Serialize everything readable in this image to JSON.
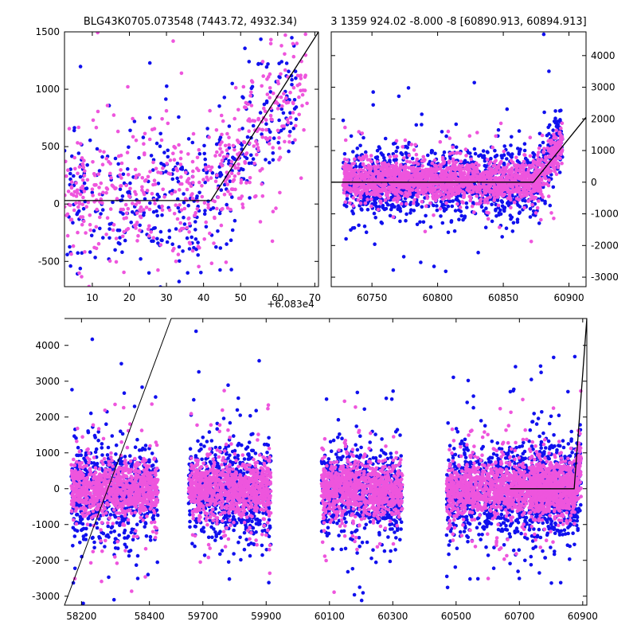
{
  "colors": {
    "series_a": "#1010ee",
    "series_b": "#ee55dd",
    "model": "#000000",
    "frame": "#000000"
  },
  "chart_data": [
    {
      "type": "scatter",
      "panel": "top-left",
      "title": "BLG43K0705.073548 (7443.72, 4932.34)",
      "x_offset_label": "+6.083e4",
      "xlim": [
        2.5,
        71
      ],
      "ylim": [
        -720,
        1500
      ],
      "xticks": [
        10,
        20,
        30,
        40,
        50,
        60,
        70
      ],
      "yticks": [
        -500,
        0,
        500,
        1000,
        1500
      ],
      "ytick_side": "left",
      "series": [
        {
          "color_key": "series_a",
          "x_range": [
            2.5,
            65
          ],
          "y_center": 60,
          "y_spread": 320,
          "trend": {
            "start": 40,
            "slope": 40
          },
          "count": 420,
          "seed": 11
        },
        {
          "color_key": "series_b",
          "x_range": [
            2.5,
            68
          ],
          "y_center": 120,
          "y_spread": 280,
          "trend": {
            "start": 40,
            "slope": 35
          },
          "count": 560,
          "seed": 23
        }
      ],
      "model_line": [
        [
          2.5,
          30
        ],
        [
          42,
          30
        ],
        [
          71,
          1500
        ]
      ]
    },
    {
      "type": "scatter",
      "panel": "top-right",
      "title": "3 1359 924.02 -8.000 -8 [60890.913, 60894.913]",
      "xlim": [
        60719,
        60913
      ],
      "ylim": [
        -3300,
        4750
      ],
      "xticks": [
        60750,
        60800,
        60850,
        60900
      ],
      "yticks": [
        -3000,
        -2000,
        -1000,
        0,
        1000,
        2000,
        3000,
        4000
      ],
      "ytick_side": "right",
      "series": [
        {
          "color_key": "series_a",
          "x_range": [
            60728,
            60895
          ],
          "y_center": 0,
          "y_spread": 520,
          "trend": {
            "start": 60875,
            "slope": 70
          },
          "count": 1400,
          "seed": 31
        },
        {
          "color_key": "series_b",
          "x_range": [
            60728,
            60895
          ],
          "y_center": 60,
          "y_spread": 300,
          "trend": {
            "start": 60875,
            "slope": 60
          },
          "count": 1800,
          "seed": 47
        }
      ],
      "model_line": [
        [
          60719,
          0
        ],
        [
          60873,
          0
        ],
        [
          60913,
          2050
        ]
      ]
    },
    {
      "type": "scatter",
      "panel": "bottom",
      "xlim": [
        0,
        1
      ],
      "ylim": [
        -3250,
        4750
      ],
      "xticks": [
        58200,
        58400,
        59700,
        59900,
        60100,
        60300,
        60500,
        60700,
        60900
      ],
      "yticks": [
        -3000,
        -2000,
        -1000,
        0,
        1000,
        2000,
        3000,
        4000
      ],
      "ytick_side": "left",
      "seasons": [
        {
          "x_range": [
            58170,
            58425
          ]
        },
        {
          "x_range": [
            59655,
            59915
          ]
        },
        {
          "x_range": [
            60075,
            60330
          ]
        },
        {
          "x_range": [
            60470,
            60725
          ]
        },
        {
          "x_range": [
            60730,
            60895
          ]
        }
      ],
      "series": [
        {
          "color_key": "series_a",
          "y_center": -80,
          "y_spread": 650,
          "count_per_season": 700,
          "seed": 59
        },
        {
          "color_key": "series_b",
          "y_center": 0,
          "y_spread": 380,
          "count_per_season": 900,
          "seed": 71
        }
      ],
      "model_line": [
        [
          60670,
          0
        ],
        [
          60873,
          0
        ],
        [
          60913,
          4750
        ]
      ]
    }
  ]
}
